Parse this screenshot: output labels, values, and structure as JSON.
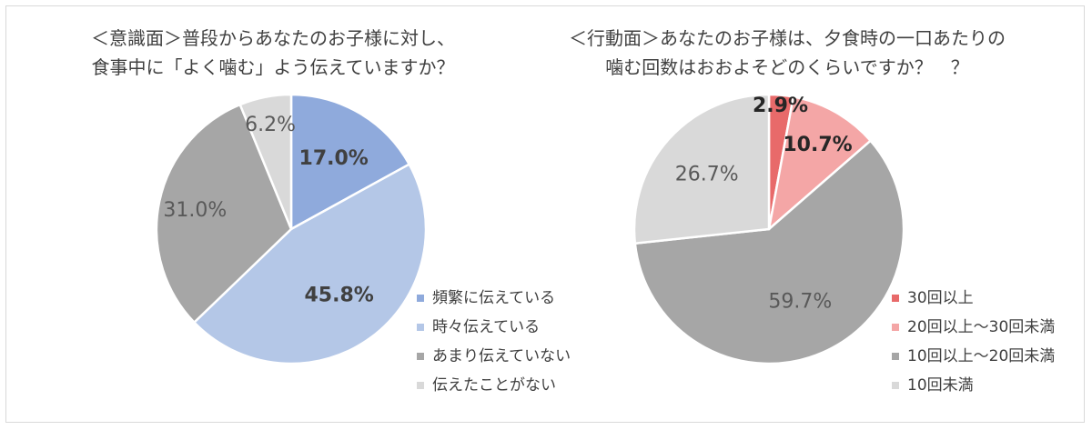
{
  "chart_data": [
    {
      "type": "pie",
      "title_lines": [
        "＜意識面＞普段からあなたのお子様に対し、",
        "食事中に「よく噛む」よう伝えていますか？"
      ],
      "series": [
        {
          "labels": [
            "頻繁に伝えている",
            "時々伝えている",
            "あまり伝えていない",
            "伝えたことがない"
          ],
          "values": [
            17.0,
            45.8,
            31.0,
            6.2
          ],
          "data_labels": [
            "17.0%",
            "45.8%",
            "31.0%",
            "6.2%"
          ],
          "colors": [
            "#8faadc",
            "#b4c7e7",
            "#a6a6a6",
            "#d9d9d9"
          ]
        }
      ],
      "legend_position": "right"
    },
    {
      "type": "pie",
      "title_lines": [
        "＜行動面＞あなたのお子様は、夕食時の一口あたりの",
        "噛む回数はおおよそどのくらいですか？　？"
      ],
      "series": [
        {
          "labels": [
            "30回以上",
            "20回以上～30回未満",
            "10回以上～20回未満",
            "10回未満"
          ],
          "values": [
            2.9,
            10.7,
            59.7,
            26.7
          ],
          "data_labels": [
            "2.9%",
            "10.7%",
            "59.7%",
            "26.7%"
          ],
          "colors": [
            "#e86a6a",
            "#f4a6a6",
            "#a6a6a6",
            "#d9d9d9"
          ]
        }
      ],
      "legend_position": "right"
    }
  ]
}
